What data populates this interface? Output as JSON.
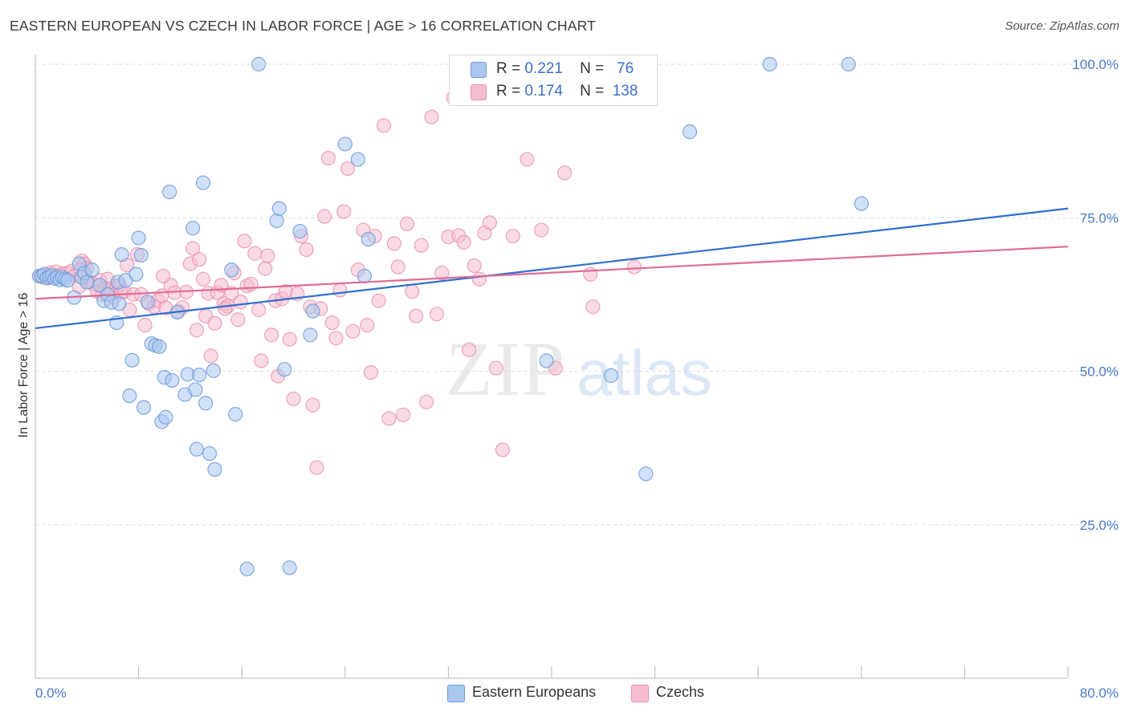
{
  "header": {
    "title": "EASTERN EUROPEAN VS CZECH IN LABOR FORCE | AGE > 16 CORRELATION CHART",
    "source": "Source: ZipAtlas.com"
  },
  "legend": {
    "rows": [
      {
        "r_label": "R =",
        "r_value": "0.221",
        "n_label": "N =",
        "n_value": "76"
      },
      {
        "r_label": "R =",
        "r_value": "0.174",
        "n_label": "N =",
        "n_value": "138"
      }
    ]
  },
  "bottom_legend": [
    "Eastern Europeans",
    "Czechs"
  ],
  "colors": {
    "blue_fill": "#a9c8f0",
    "blue_stroke": "#6f9ad8",
    "blue_line": "#2f6fd0",
    "pink_fill": "#f6bdd0",
    "pink_stroke": "#e88fae",
    "pink_line": "#e06a95",
    "tick_label": "#4a78c8",
    "grid": "#dcdcdc"
  },
  "watermark": {
    "zip": "ZIP",
    "atlas": "atlas"
  },
  "chart_data": {
    "type": "scatter",
    "title": "EASTERN EUROPEAN VS CZECH IN LABOR FORCE | AGE > 16 CORRELATION CHART",
    "xlabel": "",
    "ylabel": "In Labor Force | Age > 16",
    "xlim": [
      0,
      80
    ],
    "ylim": [
      0,
      100
    ],
    "x_tick_labels": [
      "0.0%",
      "80.0%"
    ],
    "y_ticks": [
      25,
      50,
      75,
      100
    ],
    "y_tick_labels": [
      "25.0%",
      "50.0%",
      "75.0%",
      "100.0%"
    ],
    "grid": true,
    "legend_position": "top-center",
    "series": [
      {
        "name": "Eastern Europeans",
        "r": 0.221,
        "n": 76,
        "trend": [
          [
            0,
            57.0
          ],
          [
            80,
            76.5
          ]
        ],
        "points": [
          [
            0.3,
            65.5
          ],
          [
            0.5,
            65.5
          ],
          [
            0.7,
            65.8
          ],
          [
            0.9,
            65.2
          ],
          [
            1.1,
            65.4
          ],
          [
            1.3,
            65.6
          ],
          [
            1.5,
            65.1
          ],
          [
            1.7,
            65.3
          ],
          [
            1.9,
            64.9
          ],
          [
            2.1,
            65.3
          ],
          [
            2.3,
            65.0
          ],
          [
            2.5,
            64.8
          ],
          [
            3.0,
            62.0
          ],
          [
            3.4,
            67.5
          ],
          [
            3.6,
            65.3
          ],
          [
            3.8,
            66.0
          ],
          [
            4.0,
            64.5
          ],
          [
            4.4,
            66.5
          ],
          [
            5.0,
            64.0
          ],
          [
            5.3,
            61.5
          ],
          [
            5.6,
            62.5
          ],
          [
            5.9,
            61.2
          ],
          [
            6.3,
            57.9
          ],
          [
            6.4,
            64.5
          ],
          [
            6.5,
            61.0
          ],
          [
            6.7,
            69.0
          ],
          [
            7.0,
            64.8
          ],
          [
            7.5,
            51.8
          ],
          [
            7.3,
            46.0
          ],
          [
            7.8,
            65.8
          ],
          [
            8.0,
            71.7
          ],
          [
            8.2,
            68.9
          ],
          [
            8.4,
            44.1
          ],
          [
            8.7,
            61.3
          ],
          [
            9.0,
            54.5
          ],
          [
            9.3,
            54.2
          ],
          [
            9.6,
            54.0
          ],
          [
            9.8,
            41.8
          ],
          [
            10.0,
            49.0
          ],
          [
            10.1,
            42.5
          ],
          [
            10.4,
            79.2
          ],
          [
            10.6,
            48.5
          ],
          [
            11.0,
            59.6
          ],
          [
            11.6,
            46.2
          ],
          [
            11.8,
            49.5
          ],
          [
            12.2,
            73.3
          ],
          [
            12.4,
            47.0
          ],
          [
            12.5,
            37.3
          ],
          [
            12.7,
            49.4
          ],
          [
            13.0,
            80.7
          ],
          [
            13.2,
            44.8
          ],
          [
            13.5,
            36.6
          ],
          [
            13.8,
            50.1
          ],
          [
            13.9,
            34.0
          ],
          [
            15.2,
            66.5
          ],
          [
            15.5,
            43.0
          ],
          [
            16.4,
            17.8
          ],
          [
            17.3,
            100.0
          ],
          [
            18.7,
            74.5
          ],
          [
            18.9,
            76.5
          ],
          [
            19.3,
            50.3
          ],
          [
            19.7,
            18.0
          ],
          [
            20.5,
            72.8
          ],
          [
            21.3,
            55.9
          ],
          [
            21.5,
            59.8
          ],
          [
            24.0,
            87.0
          ],
          [
            25.0,
            84.5
          ],
          [
            25.5,
            65.5
          ],
          [
            25.8,
            71.5
          ],
          [
            39.6,
            51.7
          ],
          [
            44.6,
            49.3
          ],
          [
            47.3,
            33.3
          ],
          [
            50.7,
            89.0
          ],
          [
            56.9,
            100.0
          ],
          [
            63.0,
            100.0
          ],
          [
            64.0,
            77.3
          ]
        ]
      },
      {
        "name": "Czechs",
        "r": 0.174,
        "n": 138,
        "trend": [
          [
            0,
            61.8
          ],
          [
            80,
            70.3
          ]
        ],
        "points": [
          [
            0.4,
            65.5
          ],
          [
            0.6,
            65.3
          ],
          [
            0.8,
            65.7
          ],
          [
            1.0,
            65.2
          ],
          [
            1.2,
            66.0
          ],
          [
            1.4,
            65.5
          ],
          [
            1.6,
            66.2
          ],
          [
            1.9,
            65.6
          ],
          [
            2.2,
            65.9
          ],
          [
            2.5,
            66.0
          ],
          [
            2.8,
            66.3
          ],
          [
            3.1,
            65.6
          ],
          [
            3.4,
            63.8
          ],
          [
            3.6,
            68.0
          ],
          [
            3.8,
            67.5
          ],
          [
            4.0,
            66.8
          ],
          [
            4.2,
            64.5
          ],
          [
            4.5,
            64.2
          ],
          [
            4.8,
            63.0
          ],
          [
            5.0,
            64.8
          ],
          [
            5.2,
            62.5
          ],
          [
            5.4,
            63.5
          ],
          [
            5.6,
            65.0
          ],
          [
            5.8,
            63.4
          ],
          [
            6.1,
            62.0
          ],
          [
            6.3,
            63.8
          ],
          [
            6.5,
            64.0
          ],
          [
            6.7,
            62.8
          ],
          [
            6.9,
            63.0
          ],
          [
            7.1,
            67.3
          ],
          [
            7.3,
            60.0
          ],
          [
            7.6,
            62.5
          ],
          [
            7.9,
            69.0
          ],
          [
            8.2,
            62.5
          ],
          [
            8.5,
            57.5
          ],
          [
            8.8,
            61.0
          ],
          [
            9.2,
            60.5
          ],
          [
            9.5,
            61.5
          ],
          [
            9.8,
            62.3
          ],
          [
            10.1,
            60.3
          ],
          [
            10.5,
            64.0
          ],
          [
            10.8,
            62.8
          ],
          [
            11.1,
            59.8
          ],
          [
            11.4,
            60.4
          ],
          [
            11.7,
            62.9
          ],
          [
            12.0,
            67.5
          ],
          [
            12.2,
            70.0
          ],
          [
            12.5,
            56.7
          ],
          [
            12.7,
            68.2
          ],
          [
            13.0,
            65.0
          ],
          [
            13.2,
            59.0
          ],
          [
            13.4,
            62.7
          ],
          [
            13.6,
            52.5
          ],
          [
            13.9,
            57.8
          ],
          [
            14.1,
            62.8
          ],
          [
            14.4,
            64.0
          ],
          [
            14.6,
            61.0
          ],
          [
            14.9,
            60.6
          ],
          [
            15.2,
            62.7
          ],
          [
            15.4,
            66.0
          ],
          [
            15.7,
            58.4
          ],
          [
            15.9,
            61.3
          ],
          [
            16.2,
            71.2
          ],
          [
            16.4,
            63.9
          ],
          [
            16.7,
            64.2
          ],
          [
            17.0,
            69.2
          ],
          [
            17.3,
            60.0
          ],
          [
            17.5,
            51.7
          ],
          [
            17.8,
            66.7
          ],
          [
            18.0,
            68.8
          ],
          [
            18.3,
            55.9
          ],
          [
            18.6,
            61.5
          ],
          [
            18.8,
            49.2
          ],
          [
            19.1,
            61.8
          ],
          [
            19.4,
            63.0
          ],
          [
            19.7,
            55.2
          ],
          [
            20.0,
            45.5
          ],
          [
            20.3,
            62.6
          ],
          [
            20.6,
            72.0
          ],
          [
            21.0,
            69.8
          ],
          [
            21.3,
            60.5
          ],
          [
            21.5,
            44.5
          ],
          [
            21.8,
            34.3
          ],
          [
            22.1,
            60.2
          ],
          [
            22.4,
            75.2
          ],
          [
            22.7,
            84.7
          ],
          [
            23.0,
            57.9
          ],
          [
            23.3,
            55.4
          ],
          [
            23.6,
            63.2
          ],
          [
            23.9,
            76.0
          ],
          [
            24.2,
            83.0
          ],
          [
            24.6,
            56.5
          ],
          [
            25.0,
            66.5
          ],
          [
            25.4,
            73.0
          ],
          [
            25.7,
            57.5
          ],
          [
            26.0,
            49.8
          ],
          [
            26.3,
            72.0
          ],
          [
            26.6,
            61.5
          ],
          [
            27.0,
            90.0
          ],
          [
            27.4,
            42.3
          ],
          [
            27.8,
            70.8
          ],
          [
            28.1,
            67.0
          ],
          [
            28.5,
            42.9
          ],
          [
            28.8,
            74.0
          ],
          [
            29.2,
            63.0
          ],
          [
            29.5,
            59.0
          ],
          [
            29.9,
            70.5
          ],
          [
            30.3,
            45.0
          ],
          [
            30.7,
            91.4
          ],
          [
            31.1,
            59.3
          ],
          [
            31.5,
            66.0
          ],
          [
            32.0,
            71.9
          ],
          [
            32.4,
            94.5
          ],
          [
            32.8,
            72.1
          ],
          [
            33.2,
            71.0
          ],
          [
            33.6,
            53.5
          ],
          [
            34.0,
            67.2
          ],
          [
            34.4,
            65.0
          ],
          [
            34.8,
            72.5
          ],
          [
            35.2,
            74.2
          ],
          [
            35.7,
            50.5
          ],
          [
            36.2,
            37.2
          ],
          [
            37.0,
            72.0
          ],
          [
            38.1,
            84.5
          ],
          [
            39.2,
            73.0
          ],
          [
            40.3,
            50.5
          ],
          [
            41.0,
            82.3
          ],
          [
            43.2,
            60.5
          ],
          [
            43.0,
            65.8
          ],
          [
            43.5,
            100.0
          ],
          [
            46.4,
            67.0
          ],
          [
            3.5,
            66.5
          ],
          [
            9.9,
            65.5
          ],
          [
            14.7,
            60.2
          ]
        ]
      }
    ]
  }
}
